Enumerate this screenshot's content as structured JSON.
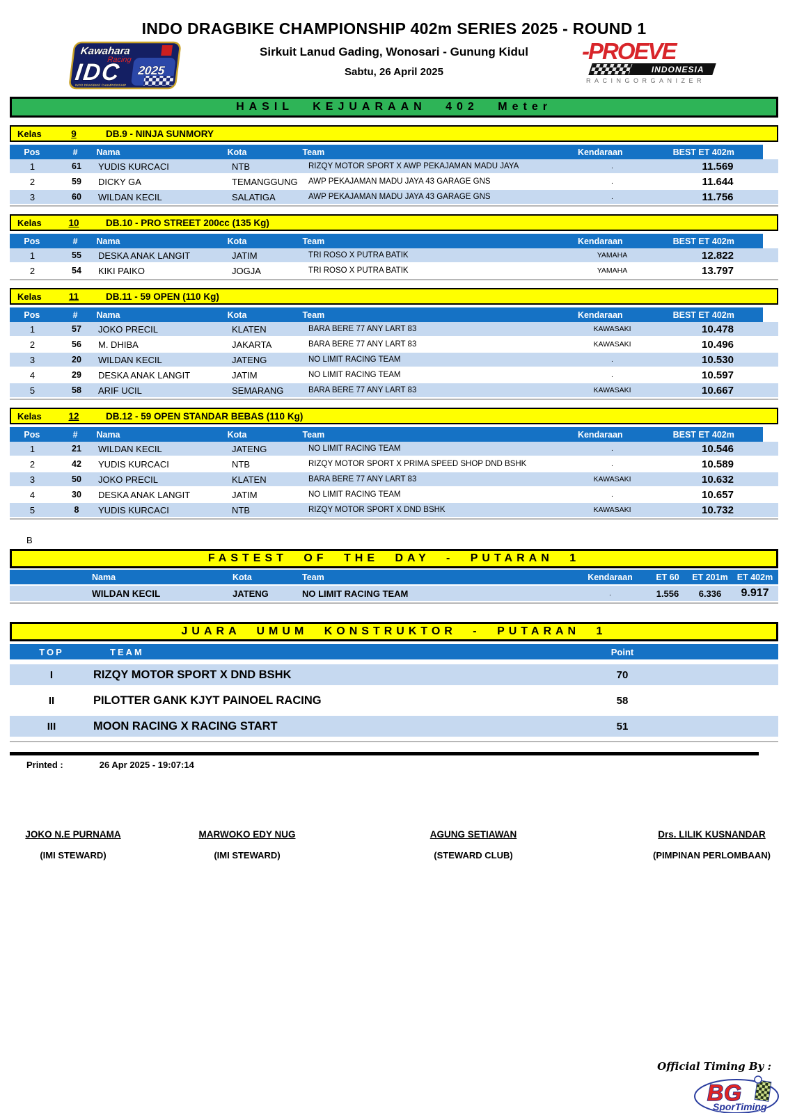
{
  "header": {
    "title": "INDO DRAGBIKE CHAMPIONSHIP 402m SERIES 2025 - ROUND 1",
    "venue": "Sirkuit Lanud Gading, Wonosari - Gunung Kidul",
    "date": "Sabtu, 26 April 2025",
    "banner": "HASIL KEJUARAAN 402 Meter"
  },
  "logos": {
    "idc": {
      "kawahara": "Kawahara",
      "racing": "Racing",
      "idc": "IDC",
      "year": "2025",
      "caption": "INDO DRAGBIKE CHAMPIONSHIP"
    },
    "proeve": {
      "name": "-PROEVE",
      "country": "INDONESIA",
      "tagline": "RACINGORGANIZER"
    },
    "timing": {
      "label": "Official Timing By :",
      "bg": "BG",
      "sportiming": "SporTiming"
    }
  },
  "labels": {
    "kelas": "Kelas"
  },
  "results_headers": [
    "Pos",
    "#",
    "Nama",
    "Kota",
    "Team",
    "Kendaraan",
    "BEST ET 402m"
  ],
  "classes": [
    {
      "number": "9",
      "name": "DB.9 - NINJA SUNMORY",
      "rows": [
        {
          "pos": "1",
          "num": "61",
          "nama": "YUDIS KURCACI",
          "kota": "NTB",
          "team": "RIZQY MOTOR SPORT X AWP PEKAJAMAN MADU JAYA",
          "kendaraan": ".",
          "best": "11.569"
        },
        {
          "pos": "2",
          "num": "59",
          "nama": "DICKY GA",
          "kota": "TEMANGGUNG",
          "team": "AWP PEKAJAMAN MADU JAYA 43 GARAGE GNS",
          "kendaraan": ".",
          "best": "11.644"
        },
        {
          "pos": "3",
          "num": "60",
          "nama": "WILDAN KECIL",
          "kota": "SALATIGA",
          "team": "AWP PEKAJAMAN MADU JAYA 43 GARAGE GNS",
          "kendaraan": ".",
          "best": "11.756"
        }
      ]
    },
    {
      "number": "10",
      "name": "DB.10 - PRO STREET 200cc (135 Kg)",
      "rows": [
        {
          "pos": "1",
          "num": "55",
          "nama": "DESKA ANAK LANGIT",
          "kota": "JATIM",
          "team": "TRI ROSO X PUTRA BATIK",
          "kendaraan": "YAMAHA",
          "best": "12.822"
        },
        {
          "pos": "2",
          "num": "54",
          "nama": "KIKI PAIKO",
          "kota": "JOGJA",
          "team": "TRI ROSO X PUTRA BATIK",
          "kendaraan": "YAMAHA",
          "best": "13.797"
        }
      ]
    },
    {
      "number": "11",
      "name": "DB.11 - 59 OPEN (110 Kg)",
      "rows": [
        {
          "pos": "1",
          "num": "57",
          "nama": "JOKO PRECIL",
          "kota": "KLATEN",
          "team": "BARA BERE 77 ANY LART 83",
          "kendaraan": "KAWASAKI",
          "best": "10.478"
        },
        {
          "pos": "2",
          "num": "56",
          "nama": "M. DHIBA",
          "kota": "JAKARTA",
          "team": "BARA BERE 77 ANY LART 83",
          "kendaraan": "KAWASAKI",
          "best": "10.496"
        },
        {
          "pos": "3",
          "num": "20",
          "nama": "WILDAN KECIL",
          "kota": "JATENG",
          "team": "NO LIMIT RACING TEAM",
          "kendaraan": ".",
          "best": "10.530"
        },
        {
          "pos": "4",
          "num": "29",
          "nama": "DESKA ANAK LANGIT",
          "kota": "JATIM",
          "team": "NO LIMIT RACING TEAM",
          "kendaraan": ".",
          "best": "10.597"
        },
        {
          "pos": "5",
          "num": "58",
          "nama": "ARIF UCIL",
          "kota": "SEMARANG",
          "team": "BARA BERE 77 ANY LART 83",
          "kendaraan": "KAWASAKI",
          "best": "10.667"
        }
      ]
    },
    {
      "number": "12",
      "name": "DB.12 - 59 OPEN STANDAR BEBAS (110 Kg)",
      "rows": [
        {
          "pos": "1",
          "num": "21",
          "nama": "WILDAN KECIL",
          "kota": "JATENG",
          "team": "NO LIMIT RACING TEAM",
          "kendaraan": ".",
          "best": "10.546"
        },
        {
          "pos": "2",
          "num": "42",
          "nama": "YUDIS KURCACI",
          "kota": "NTB",
          "team": "RIZQY MOTOR SPORT X PRIMA SPEED SHOP DND BSHK",
          "kendaraan": ".",
          "best": "10.589"
        },
        {
          "pos": "3",
          "num": "50",
          "nama": "JOKO PRECIL",
          "kota": "KLATEN",
          "team": "BARA BERE 77 ANY LART 83",
          "kendaraan": "KAWASAKI",
          "best": "10.632"
        },
        {
          "pos": "4",
          "num": "30",
          "nama": "DESKA ANAK LANGIT",
          "kota": "JATIM",
          "team": "NO LIMIT RACING TEAM",
          "kendaraan": ".",
          "best": "10.657"
        },
        {
          "pos": "5",
          "num": "8",
          "nama": "YUDIS KURCACI",
          "kota": "NTB",
          "team": "RIZQY MOTOR SPORT X DND BSHK",
          "kendaraan": "KAWASAKI",
          "best": "10.732"
        }
      ]
    }
  ],
  "note_b": "B",
  "fastest": {
    "title": "FASTEST OF THE DAY - PUTARAN 1",
    "headers": [
      "Nama",
      "Kota",
      "Team",
      "Kendaraan",
      "ET 60",
      "ET 201m",
      "ET 402m"
    ],
    "row": {
      "nama": "WILDAN KECIL",
      "kota": "JATENG",
      "team": "NO LIMIT RACING TEAM",
      "kendaraan": ".",
      "et60": "1.556",
      "et201": "6.336",
      "et402": "9.917"
    }
  },
  "konstruktor": {
    "title": "JUARA UMUM KONSTRUKTOR - PUTARAN 1",
    "headers": {
      "top": "TOP",
      "team": "TEAM",
      "point": "Point"
    },
    "rows": [
      {
        "top": "I",
        "team": "RIZQY MOTOR SPORT X DND BSHK",
        "point": "70"
      },
      {
        "top": "II",
        "team": "PILOTTER GANK KJYT PAINOEL RACING",
        "point": "58"
      },
      {
        "top": "III",
        "team": "MOON RACING X RACING START",
        "point": "51"
      }
    ]
  },
  "footer": {
    "printed_label": "Printed :",
    "printed_value": "26 Apr 2025 - 19:07:14"
  },
  "signatures": [
    {
      "name": "JOKO N.E PURNAMA",
      "role": "(IMI STEWARD)"
    },
    {
      "name": "MARWOKO EDY NUG",
      "role": "(IMI STEWARD)"
    },
    {
      "name": "AGUNG SETIAWAN",
      "role": "(STEWARD CLUB)"
    },
    {
      "name": "Drs. LILIK KUSNANDAR",
      "role": "(PIMPINAN PERLOMBAAN)"
    }
  ],
  "colors": {
    "banner_green": "#2eb457",
    "banner_yellow": "#ffff00",
    "header_blue": "#1572c5",
    "row_blue": "#c6d9f0",
    "proeve_red": "#d8252a"
  }
}
